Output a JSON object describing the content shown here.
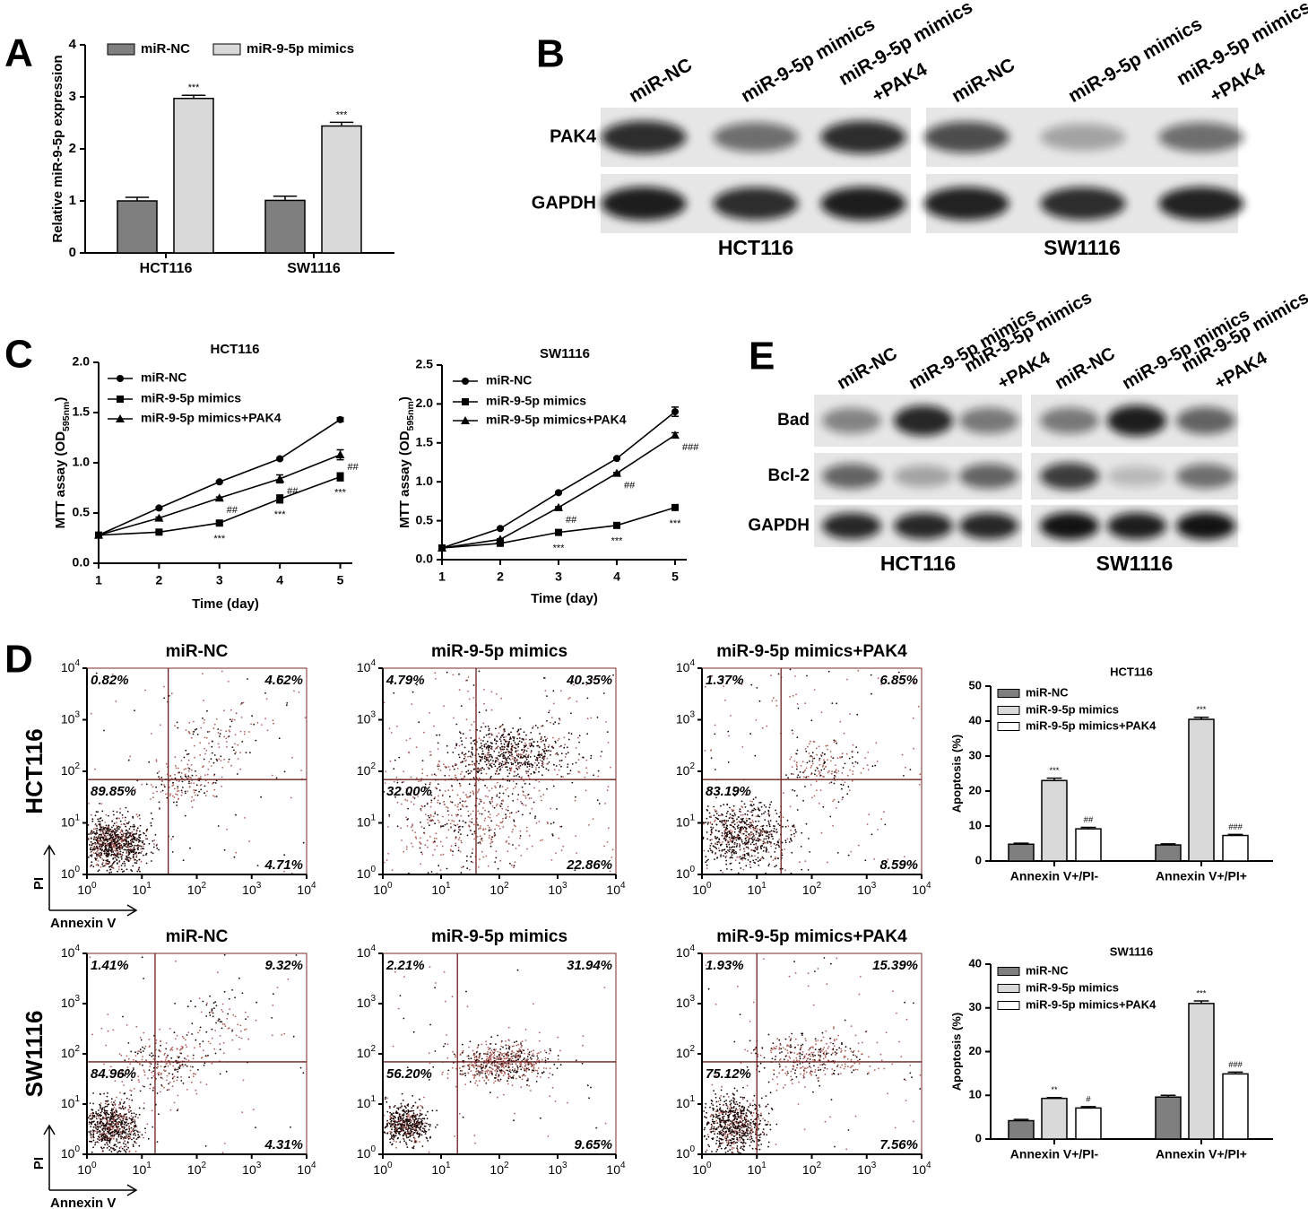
{
  "panel_letters": [
    "A",
    "B",
    "C",
    "D",
    "E"
  ],
  "chart_data": [
    {
      "type": "bar",
      "ylabel": "Relative miR-9-5p expression",
      "categories": [
        "HCT116",
        "SW1116"
      ],
      "series": [
        {
          "name": "miR-NC",
          "color": "#7f7f7f",
          "values": [
            1.0,
            1.01
          ],
          "errors": [
            0.07,
            0.08
          ]
        },
        {
          "name": "miR-9-5p mimics",
          "color": "#d9d9d9",
          "values": [
            2.97,
            2.44
          ],
          "errors": [
            0.06,
            0.07
          ],
          "labels": [
            "***",
            "***"
          ]
        }
      ],
      "ylim": [
        0,
        4
      ],
      "yticks": [
        0,
        1,
        2,
        3,
        4
      ]
    },
    {
      "type": "line",
      "title": "HCT116",
      "xlabel": "Time (day)",
      "ylabel": [
        "MTT assay (OD",
        "595nm",
        ")"
      ],
      "x": [
        1,
        2,
        3,
        4,
        5
      ],
      "xlim": [
        1,
        5.2
      ],
      "xticks": [
        1,
        2,
        3,
        4,
        5
      ],
      "ylim": [
        0,
        2
      ],
      "yticks": [
        {
          "value": 0,
          "label": "0.0"
        },
        0.5,
        {
          "value": 1,
          "label": "1.0"
        },
        1.5,
        {
          "value": 2,
          "label": "2.0"
        }
      ],
      "series": [
        {
          "name": "miR-NC",
          "marker": "circle",
          "color": "#000000",
          "values": [
            0.28,
            0.55,
            0.81,
            1.04,
            1.43
          ],
          "errors": [
            0.01,
            0.01,
            0.01,
            0.01,
            0.02
          ]
        },
        {
          "name": "miR-9-5p mimics",
          "marker": "square",
          "color": "#000000",
          "values": [
            0.28,
            0.31,
            0.4,
            0.64,
            0.86
          ],
          "errors": [
            0.01,
            0.01,
            0.02,
            0.04,
            0.04
          ],
          "labels": [
            null,
            null,
            "***",
            "***",
            "***"
          ]
        },
        {
          "name": "miR-9-5p mimics+PAK4",
          "marker": "triangle",
          "color": "#000000",
          "values": [
            0.28,
            0.45,
            0.65,
            0.84,
            1.08
          ],
          "errors": [
            0.01,
            0.01,
            0.01,
            0.04,
            0.05
          ],
          "labels": [
            null,
            null,
            "##",
            "##",
            "##"
          ]
        }
      ]
    },
    {
      "type": "line",
      "title": "SW1116",
      "xlabel": "Time (day)",
      "ylabel": [
        "MTT assay (OD",
        "595nm",
        ")"
      ],
      "x": [
        1,
        2,
        3,
        4,
        5
      ],
      "xlim": [
        1,
        5.2
      ],
      "xticks": [
        1,
        2,
        3,
        4,
        5
      ],
      "ylim": [
        0,
        2.5
      ],
      "yticks": [
        {
          "value": 0,
          "label": "0.0"
        },
        0.5,
        {
          "value": 1,
          "label": "1.0"
        },
        1.5,
        {
          "value": 2,
          "label": "2.0"
        },
        2.5
      ],
      "series": [
        {
          "name": "miR-NC",
          "marker": "circle",
          "color": "#000000",
          "values": [
            0.15,
            0.4,
            0.86,
            1.3,
            1.9
          ],
          "errors": [
            0.01,
            0.01,
            0.01,
            0.01,
            0.06
          ]
        },
        {
          "name": "miR-9-5p mimics",
          "marker": "square",
          "color": "#000000",
          "values": [
            0.15,
            0.21,
            0.35,
            0.44,
            0.67
          ],
          "errors": [
            0.01,
            0.01,
            0.01,
            0.02,
            0.02
          ],
          "labels": [
            null,
            null,
            "***",
            "***",
            "***"
          ]
        },
        {
          "name": "miR-9-5p mimics+PAK4",
          "marker": "triangle",
          "color": "#000000",
          "values": [
            0.15,
            0.26,
            0.67,
            1.11,
            1.6
          ],
          "errors": [
            0.01,
            0.01,
            0.01,
            0.01,
            0.03
          ],
          "labels": [
            null,
            null,
            "##",
            "##",
            "###"
          ]
        }
      ]
    },
    {
      "type": "bar",
      "title": "HCT116",
      "ylabel": "Apoptosis (%)",
      "categories": [
        "Annexin V+/PI-",
        "Annexin V+/PI+"
      ],
      "series": [
        {
          "name": "miR-NC",
          "color": "#7f7f7f",
          "values": [
            4.8,
            4.6
          ],
          "errors": [
            0.3,
            0.3
          ]
        },
        {
          "name": "miR-9-5p mimics",
          "color": "#d9d9d9",
          "values": [
            23.0,
            40.5
          ],
          "errors": [
            0.7,
            0.6
          ],
          "labels": [
            "***",
            "***"
          ]
        },
        {
          "name": "miR-9-5p mimics+PAK4",
          "color": "#ffffff",
          "values": [
            9.2,
            7.3
          ],
          "errors": [
            0.4,
            0.3
          ],
          "labels": [
            "##",
            "###"
          ]
        }
      ],
      "ylim": [
        0,
        50
      ],
      "yticks": [
        0,
        10,
        20,
        30,
        40,
        50
      ]
    },
    {
      "type": "bar",
      "title": "SW1116",
      "ylabel": "Apoptosis (%)",
      "categories": [
        "Annexin V+/PI-",
        "Annexin V+/PI+"
      ],
      "series": [
        {
          "name": "miR-NC",
          "color": "#7f7f7f",
          "values": [
            4.2,
            9.6
          ],
          "errors": [
            0.3,
            0.4
          ]
        },
        {
          "name": "miR-9-5p mimics",
          "color": "#d9d9d9",
          "values": [
            9.3,
            31.0
          ],
          "errors": [
            0.2,
            0.6
          ],
          "labels": [
            "**",
            "***"
          ]
        },
        {
          "name": "miR-9-5p mimics+PAK4",
          "color": "#ffffff",
          "values": [
            7.1,
            14.9
          ],
          "errors": [
            0.3,
            0.4
          ],
          "labels": [
            "#",
            "###"
          ]
        }
      ],
      "ylim": [
        0,
        40
      ],
      "yticks": [
        0,
        10,
        20,
        30,
        40
      ]
    }
  ],
  "blots": [
    {
      "lanes": [
        [
          "miR-NC"
        ],
        [
          "miR-9-5p mimics"
        ],
        [
          "miR-9-5p mimics",
          "+PAK4"
        ]
      ],
      "rows": [
        "PAK4",
        "GAPDH"
      ],
      "groups": [
        "HCT116",
        "SW1116"
      ]
    },
    {
      "lanes": [
        [
          "miR-NC"
        ],
        [
          "miR-9-5p mimics"
        ],
        [
          "miR-9-5p mimics",
          "+PAK4"
        ]
      ],
      "rows": [
        "Bad",
        "Bcl-2",
        "GAPDH"
      ],
      "groups": [
        "HCT116",
        "SW1116"
      ]
    }
  ],
  "flow": {
    "x_label": "Annexin V",
    "y_label": "PI",
    "tick_base": "10",
    "tick_exponents": [
      "0",
      "1",
      "2",
      "3",
      "4"
    ],
    "rows": [
      {
        "name": "HCT116",
        "plots": [
          {
            "title": "miR-NC",
            "ul": "0.82%",
            "ur": "4.62%",
            "ll": "89.85%",
            "lr": "4.71%"
          },
          {
            "title": "miR-9-5p mimics",
            "ul": "4.79%",
            "ur": "40.35%",
            "ll": "32.00%",
            "lr": "22.86%"
          },
          {
            "title": "miR-9-5p mimics+PAK4",
            "ul": "1.37%",
            "ur": "6.85%",
            "ll": "83.19%",
            "lr": "8.59%"
          }
        ]
      },
      {
        "name": "SW1116",
        "plots": [
          {
            "title": "miR-NC",
            "ul": "1.41%",
            "ur": "9.32%",
            "ll": "84.96%",
            "lr": "4.31%"
          },
          {
            "title": "miR-9-5p mimics",
            "ul": "2.21%",
            "ur": "31.94%",
            "ll": "56.20%",
            "lr": "9.65%"
          },
          {
            "title": "miR-9-5p mimics+PAK4",
            "ul": "1.93%",
            "ur": "15.39%",
            "ll": "75.12%",
            "lr": "7.56%"
          }
        ]
      }
    ]
  }
}
